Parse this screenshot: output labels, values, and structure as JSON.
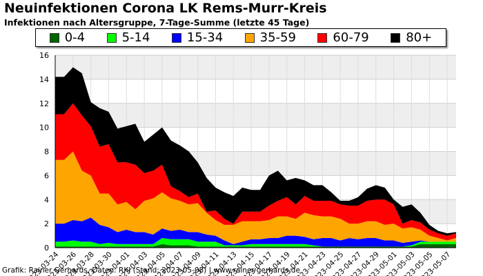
{
  "title": "Neuinfektionen Corona LK Rems-Murr-Kreis",
  "subtitle": "Infektionen nach Altersgruppe, 7-Tage-Summe (letzte 45 Tage)",
  "credit": "Grafik: Rainer Gerhards, Daten: RKI (Stand: 2023-05-08) | www.rainer-gerhards.de",
  "chart_data": {
    "type": "area",
    "stacked": true,
    "ylim": [
      0,
      16
    ],
    "yticks": [
      0,
      2,
      4,
      6,
      8,
      10,
      12,
      14,
      16
    ],
    "grid": true,
    "legend_position": "top",
    "x": [
      "2023-03-24",
      "2023-03-25",
      "2023-03-26",
      "2023-03-27",
      "2023-03-28",
      "2023-03-29",
      "2023-03-30",
      "2023-03-31",
      "2023-04-01",
      "2023-04-02",
      "2023-04-03",
      "2023-04-04",
      "2023-04-05",
      "2023-04-06",
      "2023-04-07",
      "2023-04-08",
      "2023-04-09",
      "2023-04-10",
      "2023-04-11",
      "2023-04-12",
      "2023-04-13",
      "2023-04-14",
      "2023-04-15",
      "2023-04-16",
      "2023-04-17",
      "2023-04-18",
      "2023-04-19",
      "2023-04-20",
      "2023-04-21",
      "2023-04-22",
      "2023-04-23",
      "2023-04-24",
      "2023-04-25",
      "2023-04-26",
      "2023-04-27",
      "2023-04-28",
      "2023-04-29",
      "2023-04-30",
      "2023-05-01",
      "2023-05-02",
      "2023-05-03",
      "2023-05-04",
      "2023-05-05",
      "2023-05-06",
      "2023-05-07",
      "2023-05-08"
    ],
    "xticks": [
      "2023-03-24",
      "2023-03-26",
      "2023-03-28",
      "2023-03-30",
      "2023-04-01",
      "2023-04-03",
      "2023-04-05",
      "2023-04-07",
      "2023-04-09",
      "2023-04-11",
      "2023-04-13",
      "2023-04-15",
      "2023-04-17",
      "2023-04-19",
      "2023-04-21",
      "2023-04-23",
      "2023-04-25",
      "2023-04-27",
      "2023-04-29",
      "2023-05-01",
      "2023-05-03",
      "2023-05-05",
      "2023-05-07"
    ],
    "series": [
      {
        "name": "0-4",
        "color": "#006400",
        "values": [
          0.1,
          0.1,
          0.1,
          0.1,
          0.1,
          0.1,
          0.1,
          0.1,
          0.1,
          0.1,
          0.1,
          0.1,
          0.3,
          0.2,
          0.2,
          0.2,
          0.1,
          0.1,
          0.1,
          0.1,
          0.1,
          0.1,
          0.1,
          0.1,
          0.1,
          0.1,
          0.1,
          0.1,
          0.1,
          0.1,
          0.1,
          0.1,
          0.1,
          0.1,
          0.1,
          0.1,
          0.1,
          0.1,
          0.1,
          0.1,
          0.1,
          0.3,
          0.3,
          0.3,
          0.3,
          0.3
        ]
      },
      {
        "name": "5-14",
        "color": "#00ff00",
        "values": [
          0.4,
          0.4,
          0.5,
          0.4,
          0.4,
          0.2,
          0.3,
          0.2,
          0.2,
          0.2,
          0.2,
          0.2,
          0.5,
          0.5,
          0.5,
          0.5,
          0.4,
          0.4,
          0.4,
          0.1,
          0.1,
          0.1,
          0.2,
          0.2,
          0.2,
          0.2,
          0.2,
          0.2,
          0.2,
          0.1,
          0.0,
          0.0,
          0.0,
          0.0,
          0.0,
          0.0,
          0.0,
          0.0,
          0.0,
          0.0,
          0.1,
          0.2,
          0.2,
          0.2,
          0.2,
          0.2
        ]
      },
      {
        "name": "15-34",
        "color": "#0000ff",
        "values": [
          1.5,
          1.5,
          1.7,
          1.7,
          2.0,
          1.6,
          1.3,
          1.0,
          1.2,
          1.0,
          1.0,
          0.8,
          0.8,
          0.7,
          0.8,
          0.6,
          0.8,
          0.6,
          0.5,
          0.4,
          0.1,
          0.3,
          0.4,
          0.4,
          0.5,
          0.5,
          0.7,
          0.7,
          0.6,
          0.5,
          0.7,
          0.7,
          0.5,
          0.7,
          0.6,
          0.7,
          0.7,
          0.5,
          0.5,
          0.3,
          0.3,
          0.1,
          0.0,
          0.0,
          0.0,
          0.0
        ]
      },
      {
        "name": "35-59",
        "color": "#ffa500",
        "values": [
          5.3,
          5.3,
          5.7,
          4.2,
          3.5,
          2.6,
          2.8,
          2.3,
          2.3,
          1.9,
          2.6,
          3.0,
          3.0,
          2.7,
          2.4,
          2.3,
          2.4,
          1.8,
          1.3,
          1.3,
          1.6,
          1.7,
          1.5,
          1.5,
          1.5,
          1.8,
          1.6,
          1.4,
          2.0,
          2.0,
          1.8,
          1.8,
          1.8,
          1.2,
          1.3,
          1.4,
          1.4,
          1.3,
          1.4,
          1.2,
          1.2,
          0.9,
          0.5,
          0.3,
          0.1,
          0.3
        ]
      },
      {
        "name": "60-79",
        "color": "#ff0000",
        "values": [
          3.8,
          3.8,
          4.0,
          4.6,
          4.1,
          3.9,
          4.1,
          3.5,
          3.3,
          3.7,
          2.3,
          2.3,
          2.3,
          1.0,
          0.8,
          0.6,
          0.8,
          0.1,
          0.8,
          0.5,
          0.1,
          0.8,
          0.8,
          0.8,
          1.2,
          1.3,
          1.6,
          1.2,
          1.4,
          1.2,
          1.3,
          1.3,
          1.2,
          1.5,
          1.5,
          1.7,
          1.8,
          2.1,
          1.6,
          0.4,
          0.6,
          0.6,
          0.5,
          0.4,
          0.4,
          0.4
        ]
      },
      {
        "name": "80+",
        "color": "#000000",
        "values": [
          3.1,
          3.1,
          3.0,
          3.5,
          2.0,
          3.2,
          2.7,
          2.8,
          3.0,
          3.4,
          2.6,
          3.0,
          3.1,
          3.8,
          3.8,
          3.8,
          2.6,
          2.8,
          1.9,
          2.2,
          2.3,
          2.0,
          1.8,
          1.8,
          2.5,
          2.5,
          1.4,
          2.2,
          1.3,
          1.3,
          1.3,
          0.7,
          0.3,
          0.4,
          0.7,
          1.0,
          1.2,
          1.0,
          0.4,
          1.4,
          1.3,
          0.8,
          0.4,
          0.2,
          0.2,
          0.1
        ]
      }
    ]
  }
}
